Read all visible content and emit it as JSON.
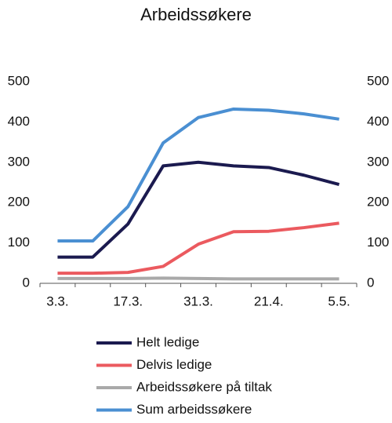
{
  "chart_data": {
    "type": "line",
    "title": "Arbeidssøkere",
    "categories": [
      "3.3.",
      null,
      "17.3.",
      null,
      "31.3.",
      null,
      "21.4.",
      null,
      "5.5."
    ],
    "series": [
      {
        "name": "Helt ledige",
        "color": "#1b1a4f",
        "values": [
          65,
          65,
          147,
          291,
          300,
          291,
          287,
          268,
          245
        ]
      },
      {
        "name": "Delvis ledige",
        "color": "#eb5a5f",
        "values": [
          25,
          25,
          27,
          42,
          97,
          128,
          129,
          138,
          149
        ]
      },
      {
        "name": "Arbeidssøkere på tiltak",
        "color": "#a9a9a9",
        "values": [
          12,
          12,
          12,
          13,
          12,
          11,
          11,
          11,
          11
        ]
      },
      {
        "name": "Sum arbeidssøkere",
        "color": "#4a8fd2",
        "values": [
          105,
          105,
          190,
          348,
          411,
          432,
          429,
          420,
          407
        ]
      }
    ],
    "ylim": [
      0,
      500
    ],
    "yticks": [
      0,
      100,
      200,
      300,
      400,
      500
    ],
    "y2lim": [
      0,
      500
    ],
    "y2ticks": [
      0,
      100,
      200,
      300,
      400,
      500
    ],
    "grid": false,
    "legend": "bottom"
  }
}
